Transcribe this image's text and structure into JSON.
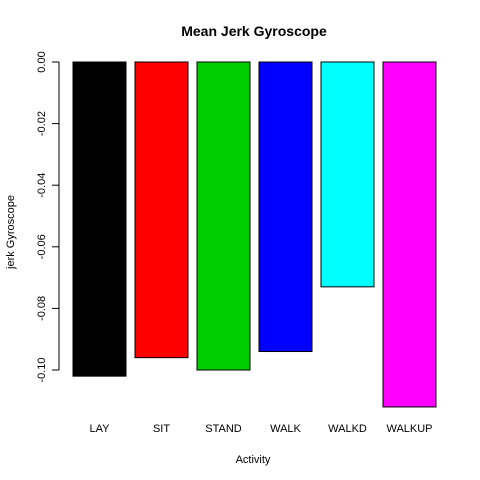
{
  "chart_data": {
    "type": "bar",
    "title": "Mean Jerk Gyroscope",
    "xlabel": "Activity",
    "ylabel": "jerk Gyroscope",
    "categories": [
      "LAY",
      "SIT",
      "STAND",
      "WALK",
      "WALKD",
      "WALKUP"
    ],
    "values": [
      -0.102,
      -0.096,
      -0.1,
      -0.094,
      -0.073,
      -0.112
    ],
    "colors": [
      "#000000",
      "#ff0000",
      "#00cd00",
      "#0000ff",
      "#00ffff",
      "#ff00ff"
    ],
    "yticks": [
      0.0,
      -0.02,
      -0.04,
      -0.06,
      -0.08,
      -0.1
    ],
    "ytick_labels": [
      "0.00",
      "-0.02",
      "-0.04",
      "-0.06",
      "-0.08",
      "-0.10"
    ],
    "ylim": [
      -0.112,
      0.0
    ],
    "grid": false,
    "legend": "none"
  }
}
